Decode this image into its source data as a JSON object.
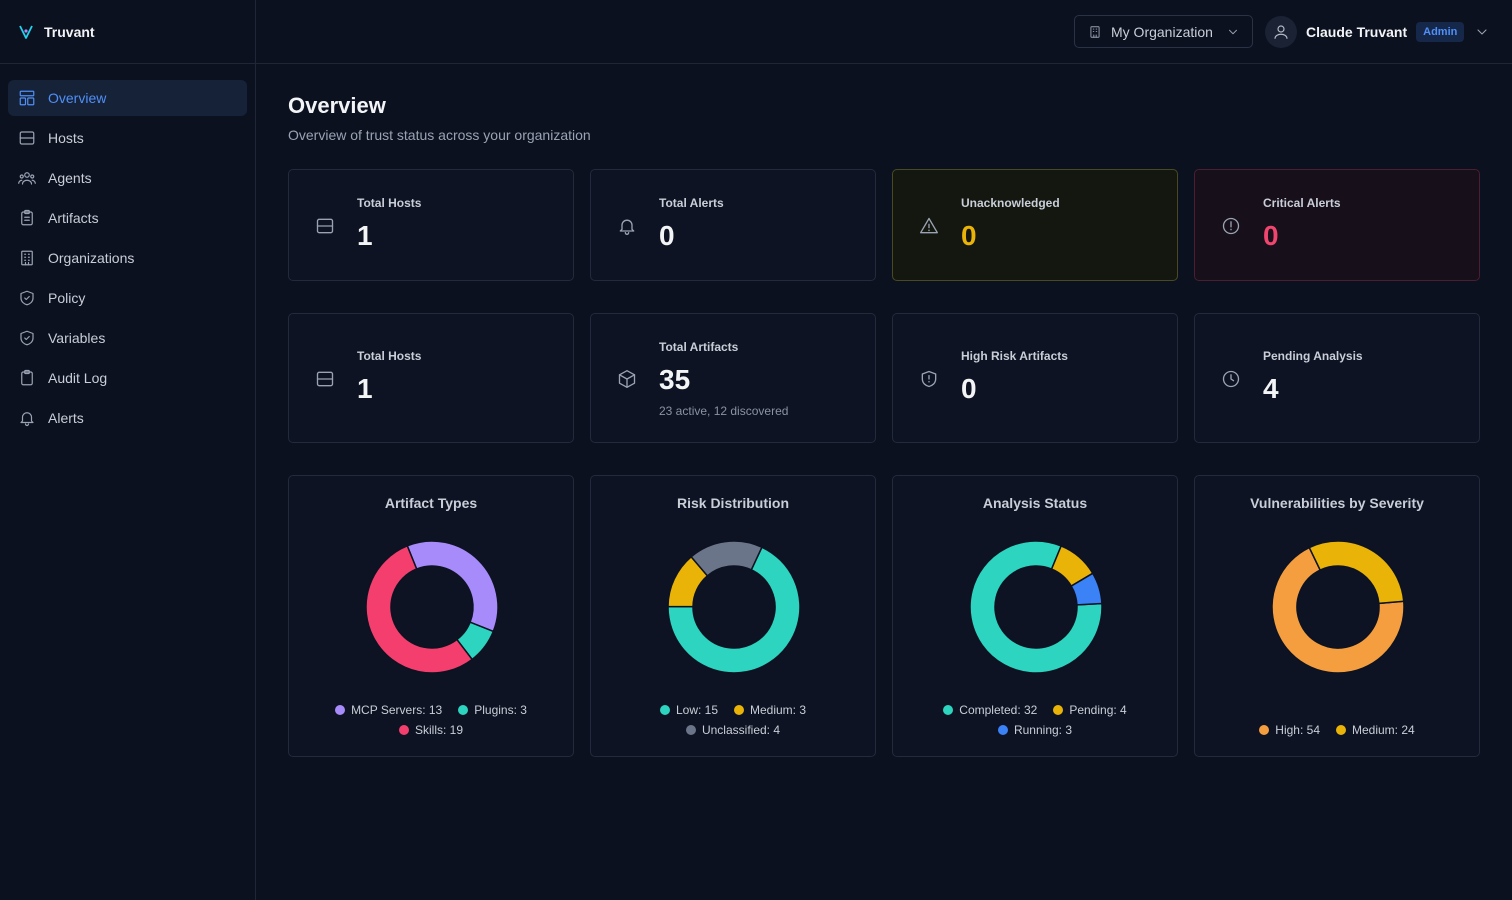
{
  "brand": {
    "name": "Truvant",
    "logo_color": "#22d3ee"
  },
  "sidebar": {
    "items": [
      {
        "label": "Overview",
        "icon": "layout-icon",
        "active": true
      },
      {
        "label": "Hosts",
        "icon": "server-icon"
      },
      {
        "label": "Agents",
        "icon": "users-icon"
      },
      {
        "label": "Artifacts",
        "icon": "clipboard-list-icon"
      },
      {
        "label": "Organizations",
        "icon": "building-icon"
      },
      {
        "label": "Policy",
        "icon": "shield-check-icon"
      },
      {
        "label": "Variables",
        "icon": "shield-check-icon"
      },
      {
        "label": "Audit Log",
        "icon": "clipboard-icon"
      },
      {
        "label": "Alerts",
        "icon": "bell-icon"
      }
    ]
  },
  "header": {
    "org_select": {
      "value": "My Organization"
    },
    "user": {
      "name": "Claude Truvant",
      "role": "Admin"
    }
  },
  "page": {
    "title": "Overview",
    "subtitle": "Overview of trust status across your organization"
  },
  "stats_row1": [
    {
      "label": "Total Hosts",
      "value": "1",
      "icon": "server-icon"
    },
    {
      "label": "Total Alerts",
      "value": "0",
      "icon": "bell-icon"
    },
    {
      "label": "Unacknowledged",
      "value": "0",
      "icon": "alert-triangle-icon",
      "tone": "warning"
    },
    {
      "label": "Critical Alerts",
      "value": "0",
      "icon": "alert-circle-icon",
      "tone": "critical"
    }
  ],
  "stats_row2": [
    {
      "label": "Total Hosts",
      "value": "1",
      "icon": "server-icon"
    },
    {
      "label": "Total Artifacts",
      "value": "35",
      "sub": "23 active, 12 discovered",
      "icon": "box-icon"
    },
    {
      "label": "High Risk Artifacts",
      "value": "0",
      "icon": "shield-alert-icon"
    },
    {
      "label": "Pending Analysis",
      "value": "4",
      "icon": "clock-icon"
    }
  ],
  "chart_data": [
    {
      "type": "pie",
      "title": "Artifact Types",
      "slices": [
        {
          "label": "MCP Servers",
          "value": 13,
          "color": "#a78bfa"
        },
        {
          "label": "Plugins",
          "value": 3,
          "color": "#2dd4bf"
        },
        {
          "label": "Skills",
          "value": 19,
          "color": "#f43f6e"
        }
      ]
    },
    {
      "type": "pie",
      "title": "Risk Distribution",
      "slices": [
        {
          "label": "Low",
          "value": 15,
          "color": "#2dd4bf"
        },
        {
          "label": "Medium",
          "value": 3,
          "color": "#eab308"
        },
        {
          "label": "Unclassified",
          "value": 4,
          "color": "#6b7589"
        }
      ]
    },
    {
      "type": "pie",
      "title": "Analysis Status",
      "slices": [
        {
          "label": "Completed",
          "value": 32,
          "color": "#2dd4bf"
        },
        {
          "label": "Pending",
          "value": 4,
          "color": "#eab308"
        },
        {
          "label": "Running",
          "value": 3,
          "color": "#3b82f6"
        }
      ]
    },
    {
      "type": "pie",
      "title": "Vulnerabilities by Severity",
      "slices": [
        {
          "label": "High",
          "value": 54,
          "color": "#f59e3f"
        },
        {
          "label": "Medium",
          "value": 24,
          "color": "#eab308"
        }
      ]
    }
  ]
}
